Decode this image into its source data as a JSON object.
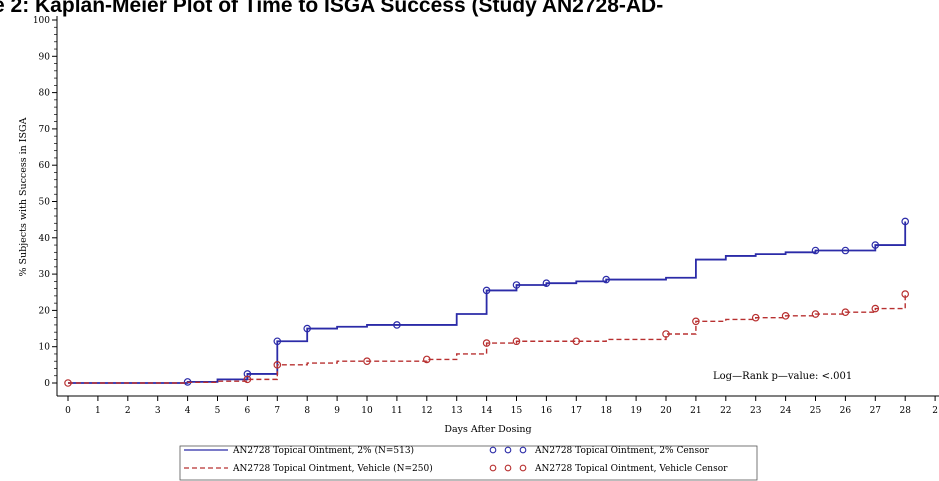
{
  "title": "ure 2: Kaplan-Meier Plot of Time to ISGA Success (Study AN2728-AD-",
  "chart_data": {
    "type": "line",
    "step": true,
    "xlabel": "Days After Dosing",
    "ylabel": "% Subjects with Success in ISGA",
    "xlim": [
      0,
      29
    ],
    "ylim": [
      0,
      100
    ],
    "x_ticks": [
      "0",
      "1",
      "2",
      "3",
      "4",
      "5",
      "6",
      "7",
      "8",
      "9",
      "10",
      "11",
      "12",
      "13",
      "14",
      "15",
      "16",
      "17",
      "18",
      "19",
      "20",
      "21",
      "22",
      "23",
      "24",
      "25",
      "26",
      "27",
      "28",
      "2"
    ],
    "y_ticks": [
      "0",
      "10",
      "20",
      "30",
      "40",
      "50",
      "60",
      "70",
      "80",
      "90",
      "100"
    ],
    "annotation": "Log—Rank p—value:   <.001",
    "series": [
      {
        "name": "AN2728 Topical Ointment, 2% (N=513)",
        "censor_name": "AN2728 Topical Ointment, 2% Censor",
        "color": "#2b2ba8",
        "style": "solid",
        "x": [
          0,
          4,
          5,
          6,
          7,
          8,
          9,
          10,
          11,
          13,
          14,
          15,
          16,
          17,
          18,
          20,
          21,
          22,
          23,
          24,
          25,
          26,
          27,
          28,
          28
        ],
        "y": [
          0,
          0.3,
          1,
          2.5,
          11.5,
          15,
          15.5,
          16,
          16,
          19,
          25.5,
          27,
          27.5,
          28,
          28.5,
          29,
          34,
          35,
          35.5,
          36,
          36.5,
          36.5,
          38,
          38,
          44.5
        ],
        "censor_x": [
          4,
          6,
          7,
          8,
          11,
          14,
          15,
          16,
          18,
          25,
          26,
          27,
          28
        ],
        "censor_y": [
          0.3,
          2.5,
          11.5,
          15,
          16,
          25.5,
          27,
          27.5,
          28.5,
          36.5,
          36.5,
          38,
          44.5
        ]
      },
      {
        "name": "AN2728 Topical Ointment, Vehicle (N=250)",
        "censor_name": "AN2728 Topical Ointment, Vehicle Censor",
        "color": "#b83030",
        "style": "dashed",
        "x": [
          0,
          4,
          5,
          6,
          7,
          8,
          9,
          10,
          11,
          12,
          13,
          14,
          15,
          16,
          17,
          18,
          20,
          21,
          22,
          23,
          24,
          25,
          26,
          27,
          28,
          28
        ],
        "y": [
          0,
          0.2,
          0.5,
          1,
          5,
          5.5,
          6,
          6,
          6,
          6.5,
          8,
          11,
          11.5,
          11.5,
          11.5,
          12,
          13.5,
          17,
          17.5,
          18,
          18.5,
          19,
          19.5,
          20.5,
          20.5,
          24.5
        ],
        "censor_x": [
          0,
          6,
          7,
          10,
          12,
          14,
          15,
          17,
          20,
          21,
          23,
          24,
          25,
          26,
          27,
          28
        ],
        "censor_y": [
          0,
          1,
          5,
          6,
          6.5,
          11,
          11.5,
          11.5,
          13.5,
          17,
          18,
          18.5,
          19,
          19.5,
          20.5,
          24.5
        ]
      }
    ],
    "legend_position": "bottom-center"
  }
}
